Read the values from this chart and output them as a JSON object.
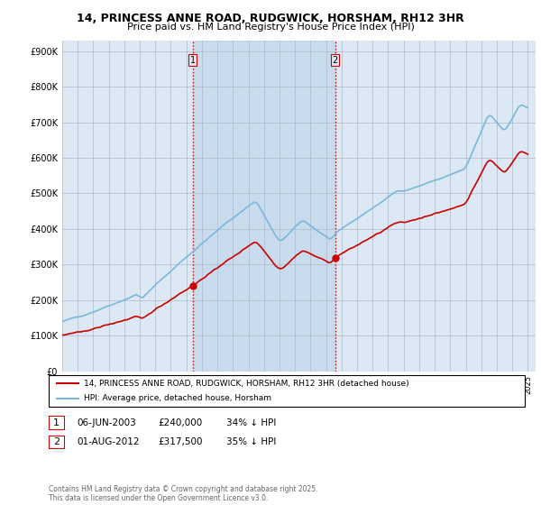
{
  "title_line1": "14, PRINCESS ANNE ROAD, RUDGWICK, HORSHAM, RH12 3HR",
  "title_line2": "Price paid vs. HM Land Registry's House Price Index (HPI)",
  "bg_color": "#dce9f5",
  "shade_color": "#c8ddf0",
  "hpi_color": "#7ab8d9",
  "price_color": "#cc0000",
  "sale1_date": "06-JUN-2003",
  "sale1_price": 240000,
  "sale1_label": "34% ↓ HPI",
  "sale2_date": "01-AUG-2012",
  "sale2_price": 317500,
  "sale2_label": "35% ↓ HPI",
  "yticks": [
    0,
    100000,
    200000,
    300000,
    400000,
    500000,
    600000,
    700000,
    800000,
    900000
  ],
  "ytick_labels": [
    "£0",
    "£100K",
    "£200K",
    "£300K",
    "£400K",
    "£500K",
    "£600K",
    "£700K",
    "£800K",
    "£900K"
  ],
  "footer_text": "Contains HM Land Registry data © Crown copyright and database right 2025.\nThis data is licensed under the Open Government Licence v3.0.",
  "legend_line1": "14, PRINCESS ANNE ROAD, RUDGWICK, HORSHAM, RH12 3HR (detached house)",
  "legend_line2": "HPI: Average price, detached house, Horsham"
}
